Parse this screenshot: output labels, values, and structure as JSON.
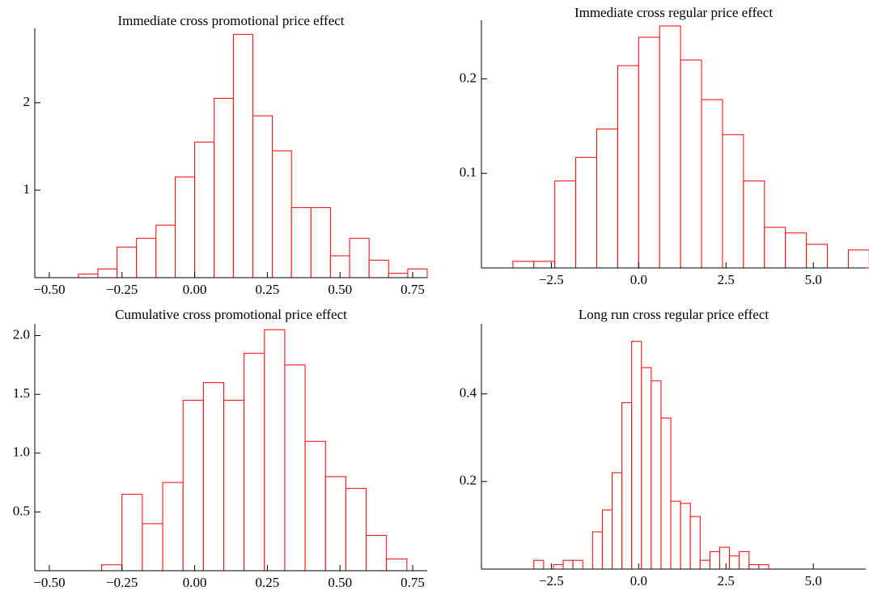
{
  "chart_data": [
    {
      "type": "histogram",
      "title": "Immediate cross promotional price effect",
      "color": "#ff0000",
      "bins": [
        -0.4,
        -0.333,
        -0.267,
        -0.2,
        -0.133,
        -0.067,
        0,
        0.067,
        0.133,
        0.2,
        0.267,
        0.333,
        0.4,
        0.467,
        0.533,
        0.6,
        0.667,
        0.733,
        0.8
      ],
      "values": [
        0.04,
        0.1,
        0.35,
        0.45,
        0.6,
        1.15,
        1.55,
        2.05,
        2.78,
        1.85,
        1.45,
        0.8,
        0.8,
        0.25,
        0.45,
        0.2,
        0.05,
        0.1
      ],
      "xlim": [
        -0.55,
        0.8
      ],
      "ylim": [
        0,
        2.85
      ],
      "xticks": [
        {
          "value": -0.5,
          "label": "−0.50"
        },
        {
          "value": -0.25,
          "label": "−0.25"
        },
        {
          "value": 0,
          "label": "0.00"
        },
        0.25,
        {
          "value": 0.5,
          "label": "0.50"
        },
        0.75
      ],
      "yticks": [
        1,
        2
      ]
    },
    {
      "type": "histogram",
      "title": "Immediate cross regular price effect",
      "color": "#ff0000",
      "bins": [
        -3.6,
        -3.0,
        -2.4,
        -1.8,
        -1.2,
        -0.6,
        0,
        0.6,
        1.2,
        1.8,
        2.4,
        3.0,
        3.6,
        4.2,
        4.8,
        5.4,
        6.0,
        6.6
      ],
      "values": [
        0.007,
        0.007,
        0.092,
        0.117,
        0.147,
        0.214,
        0.244,
        0.256,
        0.22,
        0.178,
        0.141,
        0.092,
        0.043,
        0.037,
        0.025,
        0,
        0.019
      ],
      "xlim": [
        -4.5,
        6.5
      ],
      "ylim": [
        0,
        0.262
      ],
      "xticks": [
        {
          "value": -2.5,
          "label": "−2.5"
        },
        {
          "value": 0,
          "label": "0.0"
        },
        2.5,
        {
          "value": 5,
          "label": "5.0"
        }
      ],
      "yticks": [
        0.1,
        0.2
      ]
    },
    {
      "type": "histogram",
      "title": "Cumulative cross promotional price effect",
      "color": "#ff0000",
      "bins": [
        -0.32,
        -0.25,
        -0.18,
        -0.11,
        -0.04,
        0.03,
        0.1,
        0.17,
        0.24,
        0.31,
        0.38,
        0.45,
        0.52,
        0.59,
        0.66,
        0.73
      ],
      "values": [
        0.05,
        0.65,
        0.4,
        0.75,
        1.45,
        1.6,
        1.45,
        1.85,
        2.05,
        1.75,
        1.1,
        0.8,
        0.7,
        0.3,
        0.1
      ],
      "xlim": [
        -0.55,
        0.8
      ],
      "ylim": [
        0,
        2.1
      ],
      "xticks": [
        {
          "value": -0.5,
          "label": "−0.50"
        },
        {
          "value": -0.25,
          "label": "−0.25"
        },
        {
          "value": 0,
          "label": "0.00"
        },
        0.25,
        {
          "value": 0.5,
          "label": "0.50"
        },
        0.75
      ],
      "yticks": [
        0.5,
        {
          "value": 1,
          "label": "1.0"
        },
        1.5,
        {
          "value": 2,
          "label": "2.0"
        }
      ]
    },
    {
      "type": "histogram",
      "title": "Long run cross regular price effect",
      "color": "#ff0000",
      "bins": [
        -3,
        -2.72,
        -2.44,
        -2.16,
        -1.88,
        -1.6,
        -1.32,
        -1.04,
        -0.76,
        -0.48,
        -0.2,
        0.08,
        0.36,
        0.64,
        0.92,
        1.2,
        1.48,
        1.76,
        2.04,
        2.32,
        2.6,
        2.88,
        3.16,
        3.44,
        3.72
      ],
      "values": [
        0.02,
        0,
        0.01,
        0.02,
        0.02,
        0,
        0.085,
        0.135,
        0.22,
        0.38,
        0.52,
        0.46,
        0.43,
        0.345,
        0.155,
        0.15,
        0.12,
        0.02,
        0.04,
        0.05,
        0.03,
        0.04,
        0.01,
        0.01
      ],
      "xlim": [
        -4.5,
        6.5
      ],
      "ylim": [
        0,
        0.56
      ],
      "xticks": [
        {
          "value": -2.5,
          "label": "−2.5"
        },
        {
          "value": 0,
          "label": "0.0"
        },
        2.5,
        {
          "value": 5,
          "label": "5.0"
        }
      ],
      "yticks": [
        0.2,
        0.4
      ]
    }
  ]
}
